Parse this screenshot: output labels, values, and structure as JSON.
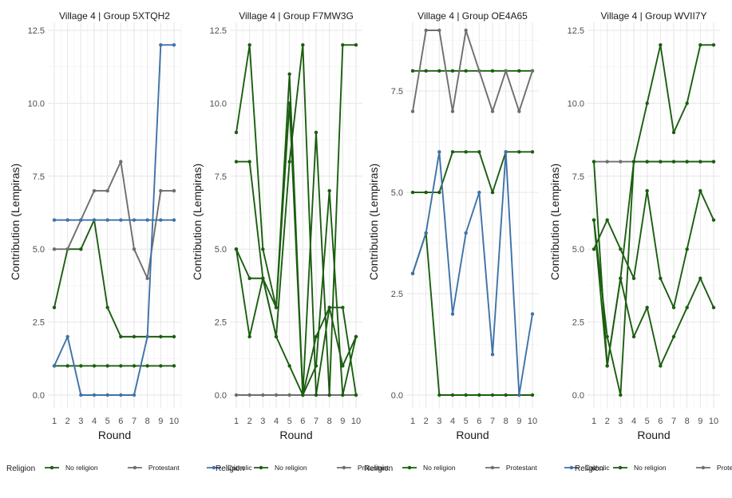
{
  "colors": {
    "No religion": "#1a5e0f",
    "Protestant": "#6e6e6e",
    "Catholic": "#3f72a8",
    "grid_major": "#e6e6e6",
    "grid_minor": "#f2f2f2",
    "tick_text": "#4d4d4d",
    "text": "#1a1a1a"
  },
  "chart_data": [
    {
      "type": "line",
      "title": "Village 4 | Group 5XTQH2",
      "xlabel": "Round",
      "ylabel": "Contribution (Lempiras)",
      "x": [
        1,
        2,
        3,
        4,
        5,
        6,
        7,
        8,
        9,
        10
      ],
      "ylim": [
        0,
        12.5
      ],
      "yticks": [
        0,
        2.5,
        5,
        7.5,
        10,
        12.5
      ],
      "ytick_labels": [
        "0.0",
        "2.5",
        "5.0",
        "7.5",
        "10.0",
        "12.5"
      ],
      "legend_title": "Religion",
      "legend": [
        "No religion",
        "Protestant",
        "Catholic"
      ],
      "series": [
        {
          "name": "No religion",
          "values": [
            3,
            5,
            5,
            6,
            3,
            2,
            2,
            2,
            2,
            2
          ]
        },
        {
          "name": "No religion",
          "values": [
            1,
            1,
            1,
            1,
            1,
            1,
            1,
            1,
            1,
            1
          ]
        },
        {
          "name": "Protestant",
          "values": [
            5,
            5,
            6,
            7,
            7,
            8,
            5,
            4,
            7,
            7
          ]
        },
        {
          "name": "Catholic",
          "values": [
            6,
            6,
            6,
            6,
            6,
            6,
            6,
            6,
            6,
            6
          ]
        },
        {
          "name": "Catholic",
          "values": [
            1,
            2,
            0,
            0,
            0,
            0,
            0,
            2,
            12,
            12
          ]
        }
      ]
    },
    {
      "type": "line",
      "title": "Village 4 | Group F7MW3G",
      "xlabel": "Round",
      "ylabel": "Contribution (Lempiras)",
      "x": [
        1,
        2,
        3,
        4,
        5,
        6,
        7,
        8,
        9,
        10
      ],
      "ylim": [
        0,
        12.5
      ],
      "yticks": [
        0,
        2.5,
        5,
        7.5,
        10,
        12.5
      ],
      "ytick_labels": [
        "0.0",
        "2.5",
        "5.0",
        "7.5",
        "10.0",
        "12.5"
      ],
      "legend_title": "Religion",
      "legend": [
        "No religion",
        "Protestant"
      ],
      "series": [
        {
          "name": "Protestant",
          "values": [
            0,
            0,
            0,
            0,
            0,
            0,
            0,
            0,
            0,
            0
          ]
        },
        {
          "name": "No religion",
          "values": [
            9,
            12,
            5,
            3,
            11,
            0,
            9,
            0,
            12,
            12
          ]
        },
        {
          "name": "No religion",
          "values": [
            8,
            8,
            4,
            3,
            10,
            0,
            1,
            7,
            0,
            2
          ]
        },
        {
          "name": "No religion",
          "values": [
            5,
            4,
            4,
            2,
            8,
            12,
            0,
            3,
            3,
            0
          ]
        },
        {
          "name": "No religion",
          "values": [
            5,
            2,
            4,
            2,
            1,
            0,
            2,
            3,
            1,
            2
          ]
        }
      ]
    },
    {
      "type": "line",
      "title": "Village 4 | Group OE4A65",
      "xlabel": "Round",
      "ylabel": "Contribution (Lempiras)",
      "x": [
        1,
        2,
        3,
        4,
        5,
        6,
        7,
        8,
        9,
        10
      ],
      "ylim": [
        0,
        9.0
      ],
      "yticks": [
        0,
        2.5,
        5,
        7.5
      ],
      "ytick_labels": [
        "0.0",
        "2.5",
        "5.0",
        "7.5"
      ],
      "legend_title": "Religion",
      "legend": [
        "No religion",
        "Protestant",
        "Catholic"
      ],
      "series": [
        {
          "name": "No religion",
          "values": [
            8,
            8,
            8,
            8,
            8,
            8,
            8,
            8,
            8,
            8
          ]
        },
        {
          "name": "No religion",
          "values": [
            5,
            5,
            5,
            6,
            6,
            6,
            5,
            6,
            6,
            6
          ]
        },
        {
          "name": "No religion",
          "values": [
            3,
            4,
            0,
            0,
            0,
            0,
            0,
            0,
            0,
            0
          ]
        },
        {
          "name": "Protestant",
          "values": [
            7,
            9,
            9,
            7,
            9,
            8,
            7,
            8,
            7,
            8
          ]
        },
        {
          "name": "Catholic",
          "values": [
            3,
            4,
            6,
            2,
            4,
            5,
            1,
            6,
            0,
            2
          ]
        }
      ]
    },
    {
      "type": "line",
      "title": "Village 4 | Group WVII7Y",
      "xlabel": "Round",
      "ylabel": "Contribution (Lempiras)",
      "x": [
        1,
        2,
        3,
        4,
        5,
        6,
        7,
        8,
        9,
        10
      ],
      "ylim": [
        0,
        12.5
      ],
      "yticks": [
        0,
        2.5,
        5,
        7.5,
        10,
        12.5
      ],
      "ytick_labels": [
        "0.0",
        "2.5",
        "5.0",
        "7.5",
        "10.0",
        "12.5"
      ],
      "legend_title": "Religion",
      "legend": [
        "No religion",
        "Protestant"
      ],
      "series": [
        {
          "name": "Protestant",
          "values": [
            8,
            8,
            8,
            8,
            8,
            8,
            8,
            8,
            8,
            8
          ]
        },
        {
          "name": "No religion",
          "values": [
            8,
            1,
            4,
            8,
            10,
            12,
            9,
            10,
            12,
            12
          ]
        },
        {
          "name": "No religion",
          "values": [
            6,
            2,
            0,
            8,
            8,
            8,
            8,
            8,
            8,
            8
          ]
        },
        {
          "name": "No religion",
          "values": [
            5,
            6,
            5,
            4,
            7,
            4,
            3,
            5,
            7,
            6
          ]
        },
        {
          "name": "No religion",
          "values": [
            6,
            1,
            4,
            2,
            3,
            1,
            2,
            3,
            4,
            3
          ]
        }
      ]
    }
  ]
}
